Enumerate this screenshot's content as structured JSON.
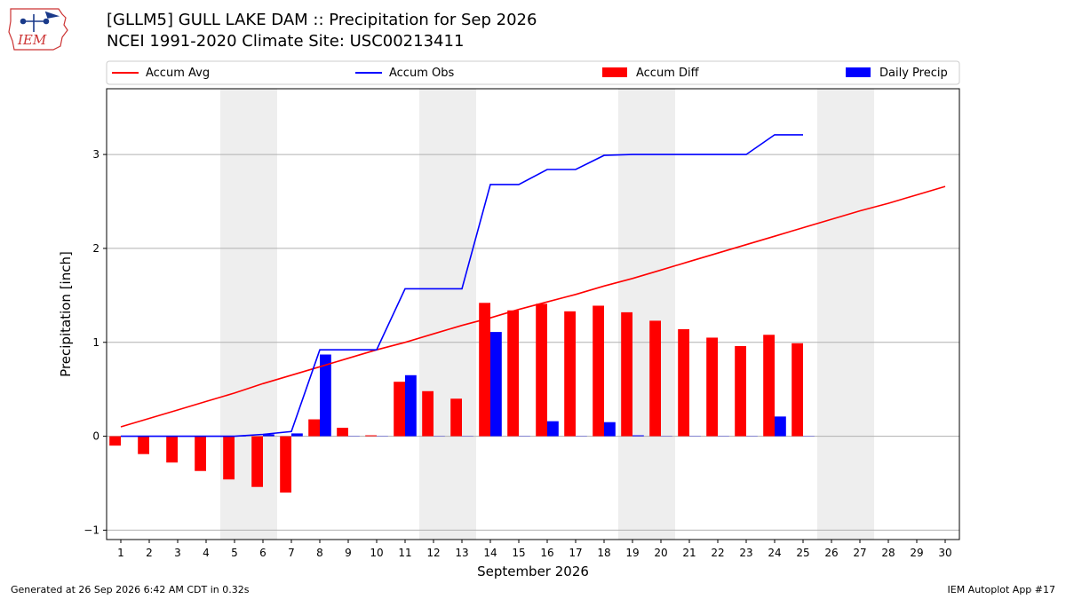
{
  "header": {
    "title_line1": "[GLLM5] GULL LAKE DAM :: Precipitation for Sep 2026",
    "title_line2": "NCEI 1991-2020 Climate Site: USC00213411",
    "logo_text": "IEM"
  },
  "footer": {
    "generated": "Generated at 26 Sep 2026 6:42 AM CDT in 0.32s",
    "app": "IEM Autoplot App #17"
  },
  "colors": {
    "avg": "#ff0000",
    "obs": "#0000ff",
    "diff": "#ff0000",
    "daily": "#0000ff",
    "weekend_shade": "#eeeeee",
    "grid": "#b0b0b0"
  },
  "chart_data": {
    "type": "bar",
    "xlabel": "September 2026",
    "ylabel": "Precipitation [inch]",
    "xlim": [
      0.5,
      30.5
    ],
    "ylim": [
      -1.1,
      3.7
    ],
    "yticks": [
      -1,
      0,
      1,
      2,
      3
    ],
    "grid": "horizontal",
    "legend_position": "top",
    "days": [
      1,
      2,
      3,
      4,
      5,
      6,
      7,
      8,
      9,
      10,
      11,
      12,
      13,
      14,
      15,
      16,
      17,
      18,
      19,
      20,
      21,
      22,
      23,
      24,
      25,
      26,
      27,
      28,
      29,
      30
    ],
    "weekend_shading": [
      [
        5,
        6
      ],
      [
        12,
        13
      ],
      [
        19,
        20
      ],
      [
        26,
        27
      ]
    ],
    "series": [
      {
        "name": "Accum Avg",
        "kind": "line",
        "x": [
          1,
          2,
          3,
          4,
          5,
          6,
          7,
          8,
          9,
          10,
          11,
          12,
          13,
          14,
          15,
          16,
          17,
          18,
          19,
          20,
          21,
          22,
          23,
          24,
          25,
          26,
          27,
          28,
          29,
          30
        ],
        "values": [
          0.1,
          0.19,
          0.28,
          0.37,
          0.46,
          0.56,
          0.65,
          0.74,
          0.83,
          0.92,
          1.0,
          1.09,
          1.18,
          1.26,
          1.35,
          1.43,
          1.51,
          1.6,
          1.68,
          1.77,
          1.86,
          1.95,
          2.04,
          2.13,
          2.22,
          2.31,
          2.4,
          2.48,
          2.57,
          2.66
        ]
      },
      {
        "name": "Accum Obs",
        "kind": "line",
        "x": [
          1,
          2,
          3,
          4,
          5,
          6,
          7,
          8,
          9,
          10,
          11,
          12,
          13,
          14,
          15,
          16,
          17,
          18,
          19,
          20,
          21,
          22,
          23,
          24,
          25
        ],
        "values": [
          0.0,
          0.0,
          0.0,
          0.0,
          0.0,
          0.02,
          0.05,
          0.92,
          0.92,
          0.92,
          1.57,
          1.57,
          1.57,
          2.68,
          2.68,
          2.84,
          2.84,
          2.99,
          3.0,
          3.0,
          3.0,
          3.0,
          3.0,
          3.21,
          3.21
        ]
      },
      {
        "name": "Accum Diff",
        "kind": "bar",
        "x": [
          1,
          2,
          3,
          4,
          5,
          6,
          7,
          8,
          9,
          10,
          11,
          12,
          13,
          14,
          15,
          16,
          17,
          18,
          19,
          20,
          21,
          22,
          23,
          24,
          25
        ],
        "values": [
          -0.1,
          -0.19,
          -0.28,
          -0.37,
          -0.46,
          -0.54,
          -0.6,
          0.18,
          0.09,
          0.01,
          0.58,
          0.48,
          0.4,
          1.42,
          1.34,
          1.41,
          1.33,
          1.39,
          1.32,
          1.23,
          1.14,
          1.05,
          0.96,
          1.08,
          0.99
        ]
      },
      {
        "name": "Daily Precip",
        "kind": "bar",
        "x": [
          1,
          2,
          3,
          4,
          5,
          6,
          7,
          8,
          9,
          10,
          11,
          12,
          13,
          14,
          15,
          16,
          17,
          18,
          19,
          20,
          21,
          22,
          23,
          24,
          25
        ],
        "values": [
          0,
          0,
          0,
          0,
          0,
          0.02,
          0.03,
          0.87,
          0,
          0,
          0.65,
          0,
          0,
          1.11,
          0,
          0.16,
          0,
          0.15,
          0.01,
          0,
          0,
          0,
          0,
          0.21,
          0
        ]
      }
    ]
  }
}
